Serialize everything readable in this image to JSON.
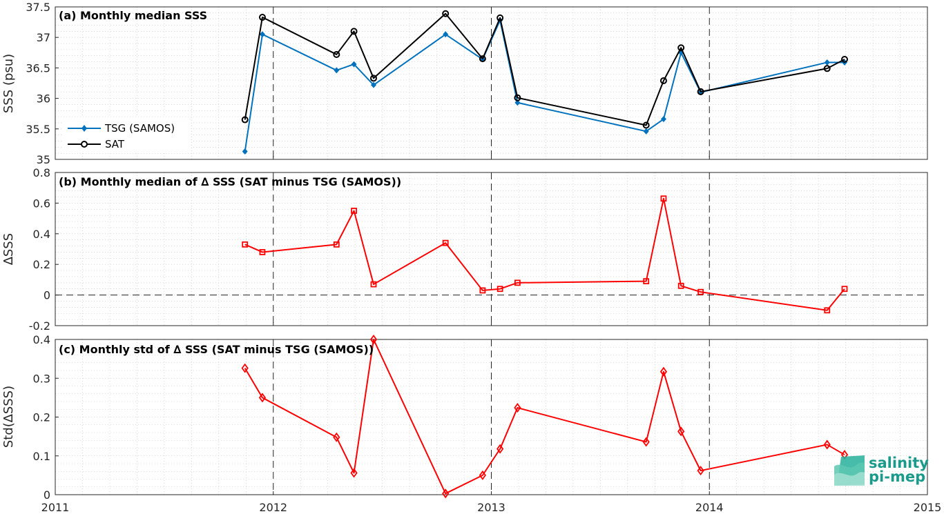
{
  "colors": {
    "tsg": "#0072BD",
    "sat": "#000000",
    "diff": "#FF0000",
    "axes": "#262626",
    "grid": "#bdbdbd",
    "logo": "#1a9a8a"
  },
  "logo": {
    "line1": "salinity",
    "line2": "pi-mep"
  },
  "x_ticks": [
    "2011",
    "2012",
    "2013",
    "2014",
    "2015"
  ],
  "chart_data": [
    {
      "type": "line",
      "title": "(a) Monthly median SSS",
      "ylabel": "SSS (psu)",
      "xlim": [
        2011,
        2015
      ],
      "ylim": [
        35,
        37.5
      ],
      "y_ticks": [
        "35",
        "35.5",
        "36",
        "36.5",
        "37",
        "37.5"
      ],
      "grid": "on",
      "legend_position": "left",
      "series": [
        {
          "name": "TSG (SAMOS)",
          "color": "#0072BD",
          "marker": "filled-diamond",
          "x": [
            2011.87,
            2011.95,
            2012.29,
            2012.37,
            2012.46,
            2012.79,
            2012.96,
            2013.04,
            2013.12,
            2013.71,
            2013.79,
            2013.87,
            2013.96,
            2014.54,
            2014.62
          ],
          "y": [
            35.13,
            37.05,
            36.46,
            36.56,
            36.22,
            37.05,
            36.64,
            37.28,
            35.93,
            35.46,
            35.66,
            36.75,
            36.1,
            36.59,
            36.59
          ]
        },
        {
          "name": "SAT",
          "color": "#000000",
          "marker": "open-circle",
          "x": [
            2011.87,
            2011.95,
            2012.29,
            2012.37,
            2012.46,
            2012.79,
            2012.96,
            2013.04,
            2013.12,
            2013.71,
            2013.79,
            2013.87,
            2013.96,
            2014.54,
            2014.62
          ],
          "y": [
            35.65,
            37.33,
            36.72,
            37.1,
            36.33,
            37.39,
            36.65,
            37.32,
            36.01,
            35.56,
            36.29,
            36.83,
            36.11,
            36.49,
            36.64
          ]
        }
      ]
    },
    {
      "type": "line",
      "title": "(b) Monthly median of ∆ SSS (SAT minus TSG (SAMOS))",
      "ylabel": "∆SSS",
      "xlim": [
        2011,
        2015
      ],
      "ylim": [
        -0.2,
        0.8
      ],
      "y_ticks": [
        "-0.2",
        "0",
        "0.2",
        "0.4",
        "0.6",
        "0.8"
      ],
      "grid": "on",
      "reference_line_y": 0,
      "series": [
        {
          "color": "#FF0000",
          "marker": "open-square",
          "x": [
            2011.87,
            2011.95,
            2012.29,
            2012.37,
            2012.46,
            2012.79,
            2012.96,
            2013.04,
            2013.12,
            2013.71,
            2013.79,
            2013.87,
            2013.96,
            2014.54,
            2014.62
          ],
          "y": [
            0.33,
            0.28,
            0.33,
            0.55,
            0.07,
            0.34,
            0.03,
            0.04,
            0.08,
            0.09,
            0.63,
            0.06,
            0.02,
            -0.1,
            0.04
          ]
        }
      ]
    },
    {
      "type": "line",
      "title": "(c) Monthly std of ∆ SSS (SAT minus TSG (SAMOS))",
      "ylabel": "Std(∆SSS)",
      "xlim": [
        2011,
        2015
      ],
      "ylim": [
        0,
        0.4
      ],
      "y_ticks": [
        "0",
        "0.1",
        "0.2",
        "0.3",
        "0.4"
      ],
      "grid": "on",
      "series": [
        {
          "color": "#FF0000",
          "marker": "open-diamond",
          "x": [
            2011.87,
            2011.95,
            2012.29,
            2012.37,
            2012.46,
            2012.79,
            2012.96,
            2013.04,
            2013.12,
            2013.71,
            2013.79,
            2013.87,
            2013.96,
            2014.54,
            2014.62
          ],
          "y": [
            0.326,
            0.25,
            0.148,
            0.056,
            0.4,
            0.003,
            0.05,
            0.118,
            0.224,
            0.136,
            0.317,
            0.163,
            0.062,
            0.129,
            0.103
          ]
        }
      ]
    }
  ]
}
